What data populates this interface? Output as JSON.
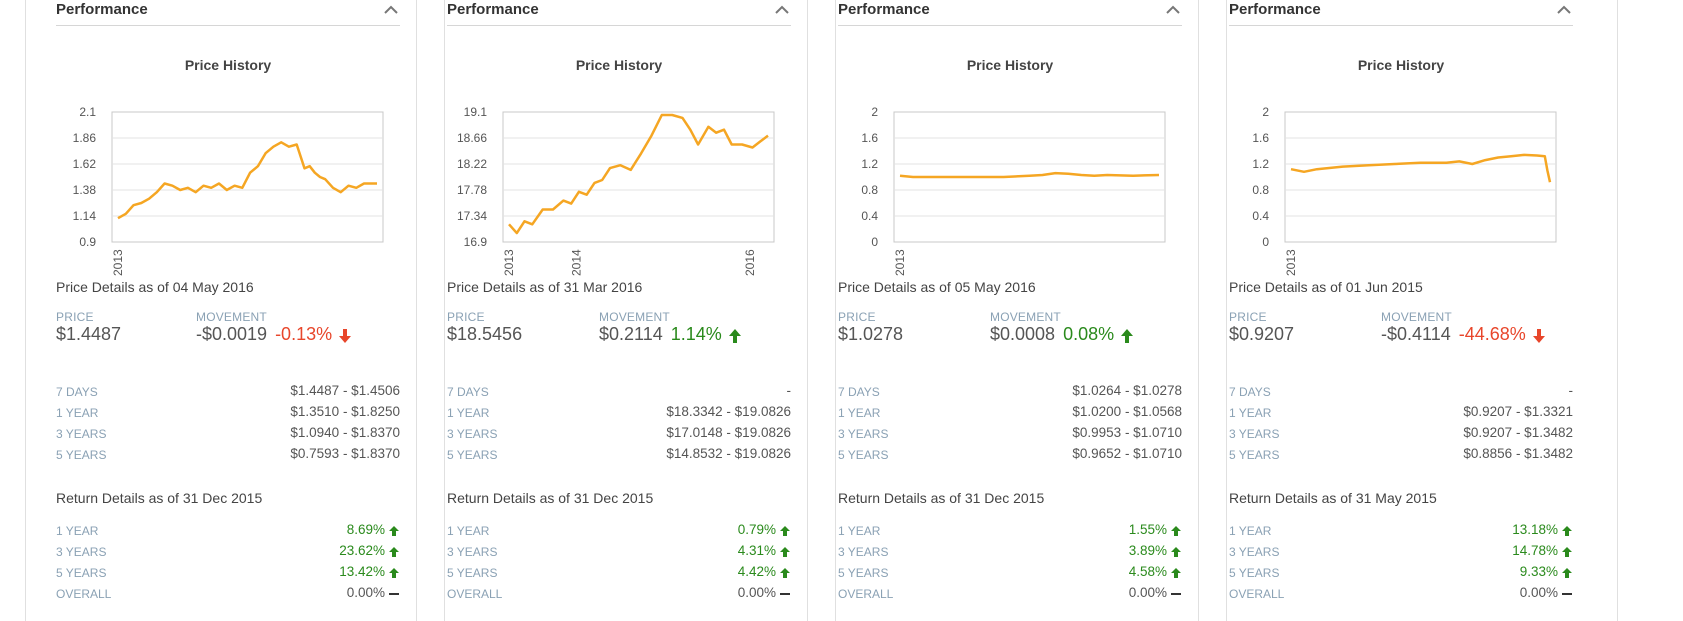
{
  "colors": {
    "line": "#f5a623",
    "up": "#2a8a1c",
    "down": "#e8462b",
    "label": "#8aa1b4"
  },
  "labels": {
    "price": "PRICE",
    "movement": "MOVEMENT",
    "range_rows": [
      "7 DAYS",
      "1 YEAR",
      "3 YEARS",
      "5 YEARS"
    ],
    "return_rows": [
      "1 YEAR",
      "3 YEARS",
      "5 YEARS",
      "OVERALL"
    ]
  },
  "panels": [
    {
      "header": "Performance",
      "chart_title": "Price History",
      "price_details_title": "Price Details as of 04 May 2016",
      "price": "$1.4487",
      "movement": "-$0.0019",
      "movement_pct": "-0.13%",
      "movement_dir": "down",
      "ranges": [
        "$1.4487 - $1.4506",
        "$1.3510 - $1.8250",
        "$1.0940 - $1.8370",
        "$0.7593 - $1.8370"
      ],
      "return_title": "Return Details as of 31 Dec 2015",
      "returns": [
        {
          "value": "8.69%",
          "dir": "up"
        },
        {
          "value": "23.62%",
          "dir": "up"
        },
        {
          "value": "13.42%",
          "dir": "up"
        },
        {
          "value": "0.00%",
          "dir": "flat"
        }
      ],
      "chart_data": {
        "type": "line",
        "y_ticks": [
          "2.1",
          "1.86",
          "1.62",
          "1.38",
          "1.14",
          "0.9"
        ],
        "ylim": [
          0.9,
          2.1
        ],
        "x_ticks": [
          {
            "label": "2013",
            "x": 0.0
          }
        ],
        "xlim": [
          0,
          1
        ],
        "x": [
          0,
          0.03,
          0.06,
          0.09,
          0.12,
          0.15,
          0.18,
          0.21,
          0.24,
          0.27,
          0.3,
          0.33,
          0.36,
          0.39,
          0.42,
          0.45,
          0.48,
          0.51,
          0.54,
          0.57,
          0.6,
          0.63,
          0.66,
          0.69,
          0.72,
          0.74,
          0.76,
          0.78,
          0.8,
          0.83,
          0.86,
          0.89,
          0.92,
          0.95,
          1.0
        ],
        "y": [
          1.12,
          1.16,
          1.24,
          1.26,
          1.3,
          1.36,
          1.44,
          1.42,
          1.38,
          1.4,
          1.36,
          1.42,
          1.4,
          1.44,
          1.38,
          1.42,
          1.4,
          1.54,
          1.6,
          1.72,
          1.78,
          1.82,
          1.78,
          1.8,
          1.58,
          1.6,
          1.54,
          1.5,
          1.48,
          1.4,
          1.36,
          1.42,
          1.4,
          1.44,
          1.44
        ]
      }
    },
    {
      "header": "Performance",
      "chart_title": "Price History",
      "price_details_title": "Price Details as of 31 Mar 2016",
      "price": "$18.5456",
      "movement": "$0.2114",
      "movement_pct": "1.14%",
      "movement_dir": "up",
      "ranges": [
        "-",
        "$18.3342 - $19.0826",
        "$17.0148 - $19.0826",
        "$14.8532 - $19.0826"
      ],
      "return_title": "Return Details as of 31 Dec 2015",
      "returns": [
        {
          "value": "0.79%",
          "dir": "up"
        },
        {
          "value": "4.31%",
          "dir": "up"
        },
        {
          "value": "4.42%",
          "dir": "up"
        },
        {
          "value": "0.00%",
          "dir": "flat"
        }
      ],
      "chart_data": {
        "type": "line",
        "y_ticks": [
          "19.1",
          "18.66",
          "18.22",
          "17.78",
          "17.34",
          "16.9"
        ],
        "ylim": [
          16.9,
          19.1
        ],
        "x_ticks": [
          {
            "label": "2013",
            "x": 0.0
          },
          {
            "label": "2014",
            "x": 0.26
          },
          {
            "label": "2016",
            "x": 0.93
          }
        ],
        "xlim": [
          0,
          1
        ],
        "x": [
          0,
          0.03,
          0.06,
          0.09,
          0.13,
          0.17,
          0.21,
          0.24,
          0.27,
          0.3,
          0.33,
          0.36,
          0.39,
          0.43,
          0.47,
          0.51,
          0.55,
          0.59,
          0.63,
          0.67,
          0.7,
          0.73,
          0.77,
          0.8,
          0.83,
          0.86,
          0.9,
          0.94,
          0.97,
          1.0
        ],
        "y": [
          17.2,
          17.05,
          17.25,
          17.2,
          17.45,
          17.45,
          17.6,
          17.55,
          17.75,
          17.7,
          17.9,
          17.95,
          18.15,
          18.2,
          18.12,
          18.4,
          18.7,
          19.05,
          19.05,
          19.0,
          18.8,
          18.55,
          18.85,
          18.75,
          18.8,
          18.55,
          18.55,
          18.5,
          18.6,
          18.7
        ]
      }
    },
    {
      "header": "Performance",
      "chart_title": "Price History",
      "price_details_title": "Price Details as of 05 May 2016",
      "price": "$1.0278",
      "movement": "$0.0008",
      "movement_pct": "0.08%",
      "movement_dir": "up",
      "ranges": [
        "$1.0264 - $1.0278",
        "$1.0200 - $1.0568",
        "$0.9953 - $1.0710",
        "$0.9652 - $1.0710"
      ],
      "return_title": "Return Details as of 31 Dec 2015",
      "returns": [
        {
          "value": "1.55%",
          "dir": "up"
        },
        {
          "value": "3.89%",
          "dir": "up"
        },
        {
          "value": "4.58%",
          "dir": "up"
        },
        {
          "value": "0.00%",
          "dir": "flat"
        }
      ],
      "chart_data": {
        "type": "line",
        "y_ticks": [
          "2",
          "1.6",
          "1.2",
          "0.8",
          "0.4",
          "0"
        ],
        "ylim": [
          0,
          2
        ],
        "x_ticks": [
          {
            "label": "2013",
            "x": 0.0
          }
        ],
        "xlim": [
          0,
          1
        ],
        "x": [
          0,
          0.05,
          0.1,
          0.2,
          0.3,
          0.4,
          0.5,
          0.55,
          0.6,
          0.65,
          0.7,
          0.75,
          0.8,
          0.9,
          1.0
        ],
        "y": [
          1.02,
          1.0,
          1.0,
          1.0,
          1.0,
          1.0,
          1.02,
          1.03,
          1.06,
          1.05,
          1.03,
          1.02,
          1.03,
          1.02,
          1.03
        ]
      }
    },
    {
      "header": "Performance",
      "chart_title": "Price History",
      "price_details_title": "Price Details as of 01 Jun 2015",
      "price": "$0.9207",
      "movement": "-$0.4114",
      "movement_pct": "-44.68%",
      "movement_dir": "down",
      "ranges": [
        "-",
        "$0.9207 - $1.3321",
        "$0.9207 - $1.3482",
        "$0.8856 - $1.3482"
      ],
      "return_title": "Return Details as of 31 May 2015",
      "returns": [
        {
          "value": "13.18%",
          "dir": "up"
        },
        {
          "value": "14.78%",
          "dir": "up"
        },
        {
          "value": "9.33%",
          "dir": "up"
        },
        {
          "value": "0.00%",
          "dir": "flat"
        }
      ],
      "chart_data": {
        "type": "line",
        "y_ticks": [
          "2",
          "1.6",
          "1.2",
          "0.8",
          "0.4",
          "0"
        ],
        "ylim": [
          0,
          2
        ],
        "x_ticks": [
          {
            "label": "2013",
            "x": 0.0
          }
        ],
        "xlim": [
          0,
          1
        ],
        "x": [
          0,
          0.05,
          0.1,
          0.2,
          0.3,
          0.4,
          0.5,
          0.6,
          0.65,
          0.7,
          0.75,
          0.8,
          0.85,
          0.9,
          0.95,
          0.98,
          0.99,
          1.0
        ],
        "y": [
          1.12,
          1.08,
          1.12,
          1.16,
          1.18,
          1.2,
          1.22,
          1.22,
          1.24,
          1.2,
          1.26,
          1.3,
          1.32,
          1.34,
          1.33,
          1.32,
          1.1,
          0.92
        ]
      }
    }
  ]
}
